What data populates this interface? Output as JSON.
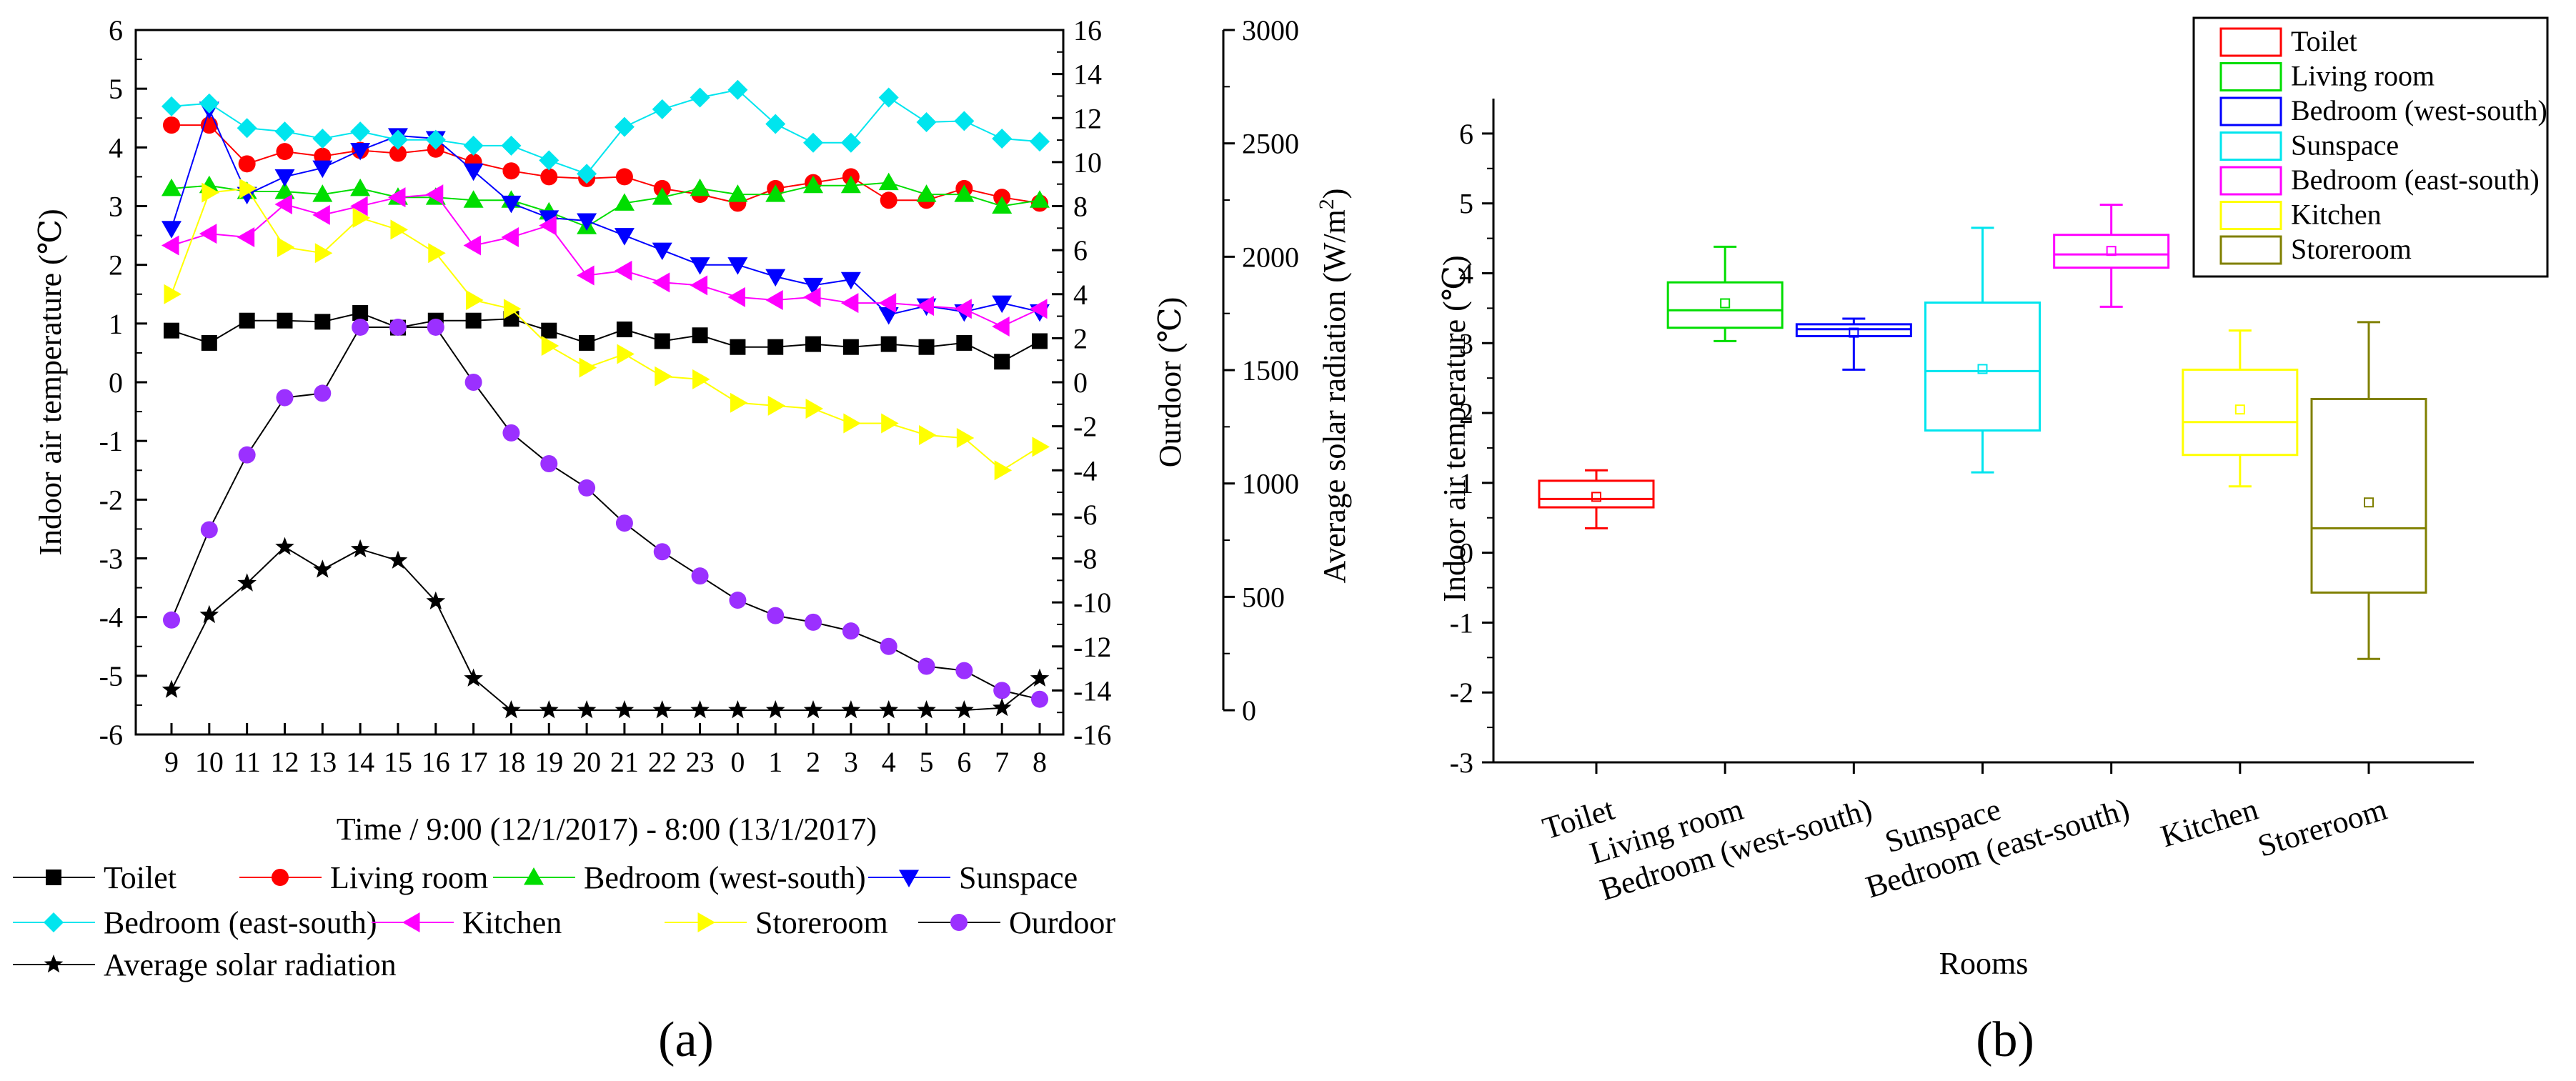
{
  "panel_labels": [
    "(a)",
    "(b)"
  ],
  "chart_data": [
    {
      "type": "line",
      "panel": "(a)",
      "title": "",
      "xlabel": "Time / 9:00 (12/1/2017) - 8:00 (13/1/2017)",
      "ylabel": "Indoor air temperature (℃)",
      "y2label": "Ourdoor (℃)",
      "y3label": "Average solar radiation (W/m²)",
      "categories": [
        "9",
        "10",
        "11",
        "12",
        "13",
        "14",
        "15",
        "16",
        "17",
        "18",
        "19",
        "20",
        "21",
        "22",
        "23",
        "0",
        "1",
        "2",
        "3",
        "4",
        "5",
        "6",
        "7",
        "8"
      ],
      "ylim": [
        -6,
        6
      ],
      "y_ticks": [
        "-6",
        "-5",
        "-4",
        "-3",
        "-2",
        "-1",
        "0",
        "1",
        "2",
        "3",
        "4",
        "5",
        "6"
      ],
      "y2lim": [
        -16,
        16
      ],
      "y2_ticks": [
        "-16",
        "-14",
        "-12",
        "-10",
        "-8",
        "-6",
        "-4",
        "-2",
        "0",
        "2",
        "4",
        "6",
        "8",
        "10",
        "12",
        "14",
        "16"
      ],
      "y3lim": [
        -107,
        3000
      ],
      "y3_ticks": [
        "0",
        "500",
        "1000",
        "1500",
        "2000",
        "2500",
        "3000"
      ],
      "series": [
        {
          "name": "Toilet",
          "axis": "left",
          "color": "#000000",
          "marker": "square",
          "values": [
            0.88,
            0.67,
            1.05,
            1.05,
            1.03,
            1.18,
            0.93,
            1.05,
            1.05,
            1.08,
            0.88,
            0.67,
            0.9,
            0.7,
            0.8,
            0.6,
            0.6,
            0.65,
            0.6,
            0.65,
            0.6,
            0.67,
            0.35,
            0.7
          ]
        },
        {
          "name": "Living room",
          "axis": "left",
          "color": "#ff0000",
          "marker": "circle",
          "values": [
            4.38,
            4.38,
            3.72,
            3.93,
            3.85,
            3.95,
            3.9,
            3.97,
            3.75,
            3.6,
            3.5,
            3.47,
            3.5,
            3.3,
            3.2,
            3.05,
            3.3,
            3.4,
            3.5,
            3.1,
            3.1,
            3.3,
            3.15,
            3.05
          ]
        },
        {
          "name": "Bedroom (west-south)",
          "axis": "left",
          "color": "#00dd00",
          "marker": "triangle-up",
          "values": [
            3.3,
            3.35,
            3.25,
            3.25,
            3.2,
            3.3,
            3.15,
            3.15,
            3.1,
            3.1,
            2.9,
            2.65,
            3.05,
            3.15,
            3.3,
            3.2,
            3.2,
            3.35,
            3.35,
            3.4,
            3.2,
            3.2,
            3.0,
            3.1
          ]
        },
        {
          "name": "Sunspace",
          "axis": "left",
          "color": "#0000ff",
          "marker": "triangle-down",
          "values": [
            2.62,
            4.65,
            3.2,
            3.5,
            3.65,
            3.95,
            4.2,
            4.15,
            3.6,
            3.05,
            2.8,
            2.75,
            2.5,
            2.25,
            2.0,
            2.0,
            1.8,
            1.65,
            1.75,
            1.15,
            1.3,
            1.2,
            1.35,
            1.2
          ]
        },
        {
          "name": "Bedroom (east-south)",
          "axis": "left",
          "color": "#00e5ee",
          "marker": "diamond",
          "values": [
            4.7,
            4.75,
            4.33,
            4.27,
            4.15,
            4.27,
            4.13,
            4.13,
            4.03,
            4.03,
            3.78,
            3.55,
            4.35,
            4.65,
            4.85,
            4.98,
            4.4,
            4.08,
            4.08,
            4.85,
            4.43,
            4.45,
            4.15,
            4.1
          ]
        },
        {
          "name": "Kitchen",
          "axis": "left",
          "color": "#ff00ff",
          "marker": "triangle-left",
          "values": [
            2.33,
            2.53,
            2.47,
            3.03,
            2.85,
            3.0,
            3.15,
            3.2,
            2.33,
            2.47,
            2.67,
            1.82,
            1.9,
            1.7,
            1.65,
            1.45,
            1.4,
            1.45,
            1.35,
            1.35,
            1.3,
            1.25,
            0.95,
            1.25
          ]
        },
        {
          "name": "Storeroom",
          "axis": "left",
          "color": "#ffff00",
          "marker": "triangle-right",
          "values": [
            1.5,
            3.23,
            3.3,
            2.3,
            2.2,
            2.8,
            2.6,
            2.2,
            1.4,
            1.25,
            0.62,
            0.25,
            0.48,
            0.1,
            0.05,
            -0.35,
            -0.4,
            -0.45,
            -0.7,
            -0.7,
            -0.9,
            -0.95,
            -1.5,
            -1.1
          ]
        },
        {
          "name": "Ourdoor",
          "axis": "right",
          "color": "#9b30ff",
          "marker": "circle",
          "values": [
            -10.8,
            -6.7,
            -3.3,
            -0.7,
            -0.5,
            2.5,
            2.5,
            2.5,
            0.0,
            -2.3,
            -3.7,
            -4.8,
            -6.4,
            -7.7,
            -8.8,
            -9.9,
            -10.6,
            -10.9,
            -11.3,
            -12.0,
            -12.9,
            -13.1,
            -14.0,
            -14.4
          ]
        },
        {
          "name": "Average solar radiation",
          "axis": "right2",
          "color": "#000000",
          "marker": "star",
          "values": [
            90,
            420,
            560,
            720,
            620,
            710,
            660,
            480,
            140,
            0,
            0,
            0,
            0,
            0,
            0,
            0,
            0,
            0,
            0,
            0,
            0,
            0,
            10,
            140
          ]
        }
      ]
    },
    {
      "type": "box",
      "panel": "(b)",
      "title": "",
      "xlabel": "Rooms",
      "ylabel": "Indoor air temperature (℃)",
      "ylim": [
        -3,
        6.5
      ],
      "y_ticks": [
        "-3",
        "-2",
        "-1",
        "0",
        "1",
        "2",
        "3",
        "4",
        "5",
        "6"
      ],
      "categories": [
        "Toilet",
        "Living room",
        "Bedroom (west-south)",
        "Sunspace",
        "Bedroom (east-south)",
        "Kitchen",
        "Storeroom"
      ],
      "legend": [
        "Toilet",
        "Living room",
        "Bedroom (west-south)",
        "Sunspace",
        "Bedroom (east-south)",
        "Kitchen",
        "Storeroom"
      ],
      "series": [
        {
          "name": "Toilet",
          "color": "#ff0000",
          "min": 0.35,
          "q1": 0.65,
          "median": 0.77,
          "q3": 1.03,
          "max": 1.18,
          "mean": 0.8
        },
        {
          "name": "Living room",
          "color": "#00dd00",
          "min": 3.03,
          "q1": 3.22,
          "median": 3.47,
          "q3": 3.87,
          "max": 4.38,
          "mean": 3.57
        },
        {
          "name": "Bedroom (west-south)",
          "color": "#0000ff",
          "min": 2.62,
          "q1": 3.1,
          "median": 3.2,
          "q3": 3.27,
          "max": 3.35,
          "mean": 3.15
        },
        {
          "name": "Sunspace",
          "color": "#00e5ee",
          "min": 1.15,
          "q1": 1.75,
          "median": 2.6,
          "q3": 3.58,
          "max": 4.65,
          "mean": 2.63
        },
        {
          "name": "Bedroom (east-south)",
          "color": "#ff00ff",
          "min": 3.52,
          "q1": 4.08,
          "median": 4.27,
          "q3": 4.55,
          "max": 4.98,
          "mean": 4.32
        },
        {
          "name": "Kitchen",
          "color": "#ffff00",
          "min": 0.95,
          "q1": 1.4,
          "median": 1.87,
          "q3": 2.62,
          "max": 3.18,
          "mean": 2.05
        },
        {
          "name": "Storeroom",
          "color": "#808000",
          "min": -1.52,
          "q1": -0.57,
          "median": 0.35,
          "q3": 2.2,
          "max": 3.3,
          "mean": 0.72
        }
      ]
    }
  ]
}
